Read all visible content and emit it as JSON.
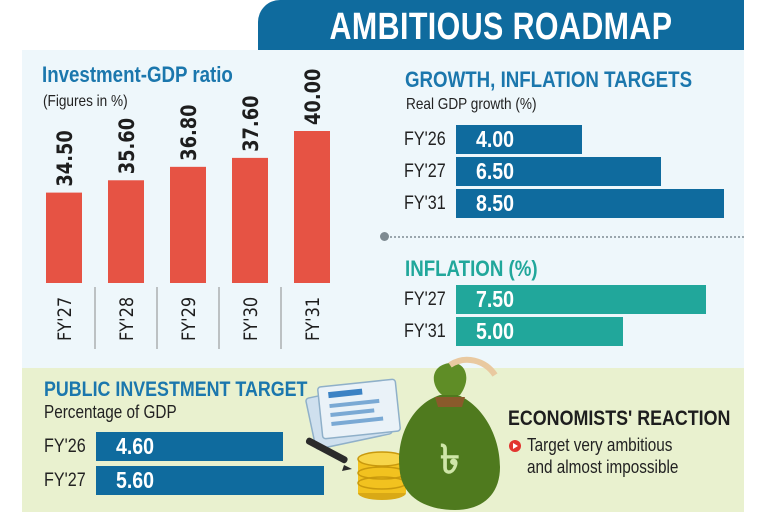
{
  "title": "AMBITIOUS ROADMAP",
  "colors": {
    "blue": "#0f6b9e",
    "red": "#e65344",
    "teal": "#21a79b",
    "heading_blue": "#1b77ad"
  },
  "chart_data": [
    {
      "type": "bar",
      "title": "Investment-GDP ratio",
      "subtitle": "(Figures in %)",
      "categories": [
        "FY'27",
        "FY'28",
        "FY'29",
        "FY'30",
        "FY'31"
      ],
      "values": [
        34.5,
        35.6,
        36.8,
        37.6,
        40.0
      ],
      "value_labels": [
        "34.50",
        "35.60",
        "36.80",
        "37.60",
        "40.00"
      ],
      "orientation": "vertical"
    },
    {
      "type": "bar",
      "title": "GROWTH, INFLATION TARGETS",
      "subtitle": "Real GDP growth (%)",
      "categories": [
        "FY'26",
        "FY'27",
        "FY'31"
      ],
      "values": [
        4.0,
        6.5,
        8.5
      ],
      "value_labels": [
        "4.00",
        "6.50",
        "8.50"
      ],
      "orientation": "horizontal"
    },
    {
      "type": "bar",
      "title": "INFLATION (%)",
      "categories": [
        "FY'27",
        "FY'31"
      ],
      "values": [
        7.5,
        5.0
      ],
      "value_labels": [
        "7.50",
        "5.00"
      ],
      "orientation": "horizontal"
    },
    {
      "type": "bar",
      "title": "PUBLIC INVESTMENT TARGET",
      "subtitle": "Percentage of GDP",
      "categories": [
        "FY'26",
        "FY'27"
      ],
      "values": [
        4.6,
        5.6
      ],
      "value_labels": [
        "4.60",
        "5.60"
      ],
      "orientation": "horizontal"
    }
  ],
  "economists": {
    "title": "ECONOMISTS' REACTION",
    "line1": "Target very ambitious",
    "line2": "and almost impossible"
  },
  "icons": {
    "bullet": "play-bullet-icon",
    "money_bag": "money-bag-icon",
    "taka_symbol": "৳",
    "coins": "coin-stack-icon",
    "documents": "documents-icon",
    "pen": "pen-icon"
  }
}
